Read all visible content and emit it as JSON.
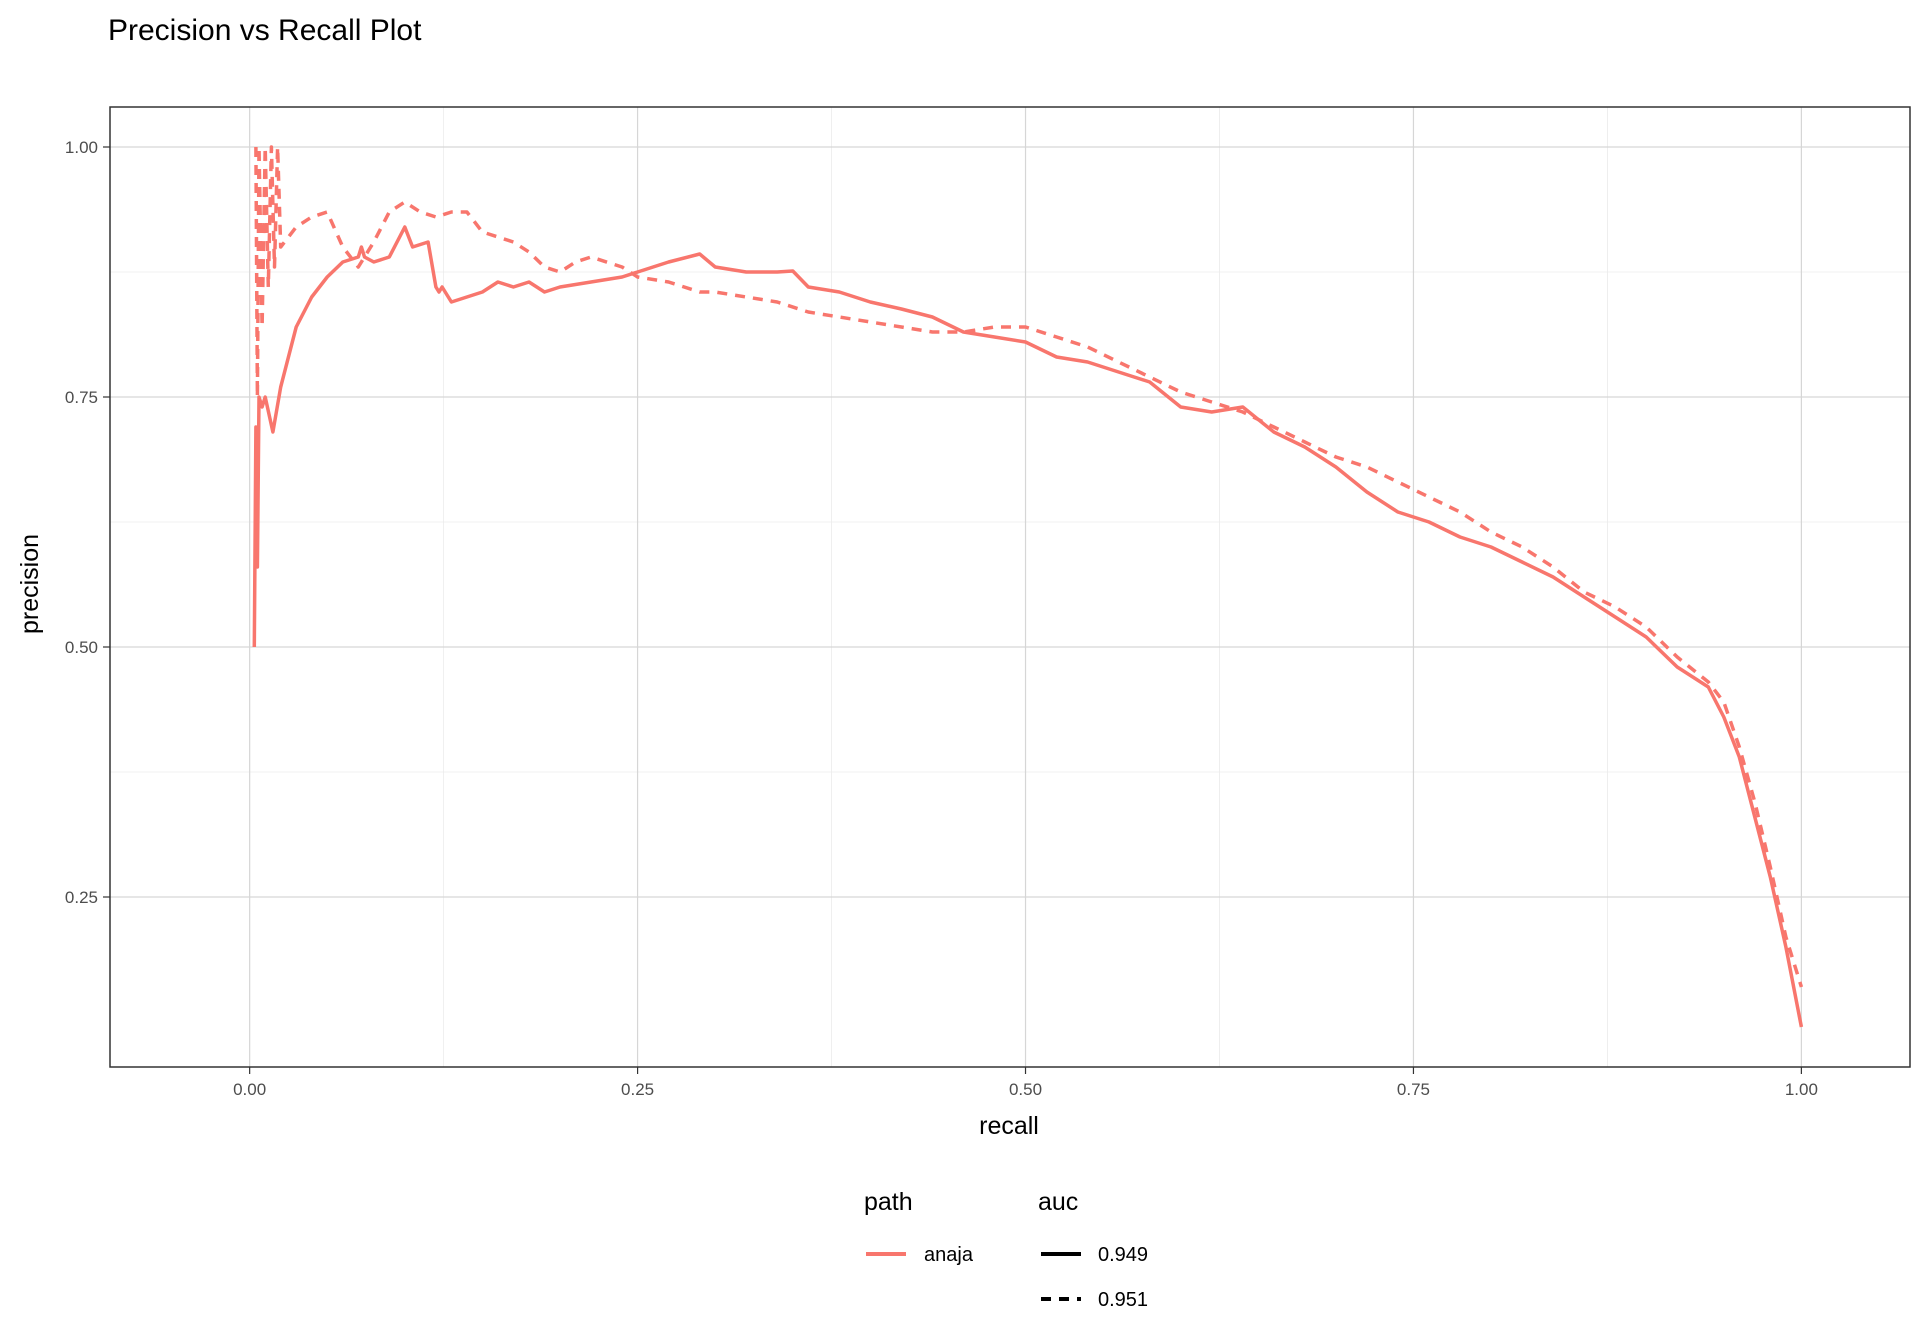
{
  "chart_data": {
    "type": "line",
    "title": "Precision vs Recall Plot",
    "xlabel": "recall",
    "ylabel": "precision",
    "xlim": [
      -0.09,
      1.07
    ],
    "ylim": [
      0.08,
      1.04
    ],
    "x_ticks": [
      0.0,
      0.25,
      0.5,
      0.75,
      1.0
    ],
    "x_tick_labels": [
      "0.00",
      "0.25",
      "0.50",
      "0.75",
      "1.00"
    ],
    "y_ticks": [
      0.25,
      0.5,
      0.75,
      1.0
    ],
    "y_tick_labels": [
      "0.25",
      "0.50",
      "0.75",
      "1.00"
    ],
    "grid": true,
    "legend_position": "bottom",
    "legend": {
      "color_title": "path",
      "color_entries": [
        {
          "label": "anaja",
          "color": "#f8766d"
        }
      ],
      "linetype_title": "auc",
      "linetype_entries": [
        {
          "label": "0.949",
          "linetype": "solid"
        },
        {
          "label": "0.951",
          "linetype": "dashed"
        }
      ]
    },
    "series": [
      {
        "path": "anaja",
        "auc": "0.949",
        "linetype": "solid",
        "color": "#f8766d",
        "points": [
          [
            0.003,
            0.5
          ],
          [
            0.004,
            0.72
          ],
          [
            0.005,
            0.58
          ],
          [
            0.006,
            0.75
          ],
          [
            0.008,
            0.74
          ],
          [
            0.01,
            0.75
          ],
          [
            0.015,
            0.715
          ],
          [
            0.02,
            0.76
          ],
          [
            0.03,
            0.82
          ],
          [
            0.04,
            0.85
          ],
          [
            0.05,
            0.87
          ],
          [
            0.06,
            0.885
          ],
          [
            0.07,
            0.89
          ],
          [
            0.072,
            0.9
          ],
          [
            0.074,
            0.89
          ],
          [
            0.08,
            0.885
          ],
          [
            0.09,
            0.89
          ],
          [
            0.1,
            0.92
          ],
          [
            0.105,
            0.9
          ],
          [
            0.115,
            0.905
          ],
          [
            0.12,
            0.86
          ],
          [
            0.122,
            0.855
          ],
          [
            0.124,
            0.86
          ],
          [
            0.13,
            0.845
          ],
          [
            0.15,
            0.855
          ],
          [
            0.16,
            0.865
          ],
          [
            0.17,
            0.86
          ],
          [
            0.18,
            0.865
          ],
          [
            0.19,
            0.855
          ],
          [
            0.2,
            0.86
          ],
          [
            0.22,
            0.865
          ],
          [
            0.24,
            0.87
          ],
          [
            0.25,
            0.875
          ],
          [
            0.27,
            0.885
          ],
          [
            0.29,
            0.893
          ],
          [
            0.3,
            0.88
          ],
          [
            0.32,
            0.875
          ],
          [
            0.34,
            0.875
          ],
          [
            0.35,
            0.876
          ],
          [
            0.36,
            0.86
          ],
          [
            0.38,
            0.855
          ],
          [
            0.4,
            0.845
          ],
          [
            0.42,
            0.838
          ],
          [
            0.44,
            0.83
          ],
          [
            0.46,
            0.815
          ],
          [
            0.48,
            0.81
          ],
          [
            0.5,
            0.805
          ],
          [
            0.52,
            0.79
          ],
          [
            0.54,
            0.785
          ],
          [
            0.56,
            0.775
          ],
          [
            0.58,
            0.765
          ],
          [
            0.6,
            0.74
          ],
          [
            0.62,
            0.735
          ],
          [
            0.64,
            0.74
          ],
          [
            0.66,
            0.715
          ],
          [
            0.68,
            0.7
          ],
          [
            0.7,
            0.68
          ],
          [
            0.72,
            0.655
          ],
          [
            0.74,
            0.635
          ],
          [
            0.76,
            0.625
          ],
          [
            0.78,
            0.61
          ],
          [
            0.8,
            0.6
          ],
          [
            0.82,
            0.585
          ],
          [
            0.84,
            0.57
          ],
          [
            0.86,
            0.55
          ],
          [
            0.88,
            0.53
          ],
          [
            0.9,
            0.51
          ],
          [
            0.92,
            0.48
          ],
          [
            0.94,
            0.46
          ],
          [
            0.95,
            0.43
          ],
          [
            0.96,
            0.39
          ],
          [
            0.97,
            0.33
          ],
          [
            0.98,
            0.27
          ],
          [
            0.99,
            0.2
          ],
          [
            1.0,
            0.12
          ]
        ]
      },
      {
        "path": "anaja",
        "auc": "0.951",
        "linetype": "dashed",
        "color": "#f8766d",
        "points": [
          [
            0.004,
            1.0
          ],
          [
            0.005,
            0.75
          ],
          [
            0.006,
            1.0
          ],
          [
            0.008,
            0.82
          ],
          [
            0.01,
            1.0
          ],
          [
            0.012,
            0.86
          ],
          [
            0.014,
            1.0
          ],
          [
            0.016,
            0.88
          ],
          [
            0.018,
            1.0
          ],
          [
            0.02,
            0.9
          ],
          [
            0.03,
            0.92
          ],
          [
            0.04,
            0.93
          ],
          [
            0.05,
            0.935
          ],
          [
            0.06,
            0.9
          ],
          [
            0.07,
            0.88
          ],
          [
            0.08,
            0.905
          ],
          [
            0.09,
            0.935
          ],
          [
            0.1,
            0.945
          ],
          [
            0.11,
            0.935
          ],
          [
            0.12,
            0.93
          ],
          [
            0.13,
            0.935
          ],
          [
            0.14,
            0.935
          ],
          [
            0.15,
            0.915
          ],
          [
            0.16,
            0.91
          ],
          [
            0.17,
            0.905
          ],
          [
            0.18,
            0.895
          ],
          [
            0.19,
            0.88
          ],
          [
            0.2,
            0.875
          ],
          [
            0.21,
            0.885
          ],
          [
            0.22,
            0.89
          ],
          [
            0.24,
            0.88
          ],
          [
            0.25,
            0.87
          ],
          [
            0.27,
            0.865
          ],
          [
            0.29,
            0.855
          ],
          [
            0.3,
            0.855
          ],
          [
            0.32,
            0.85
          ],
          [
            0.34,
            0.845
          ],
          [
            0.36,
            0.835
          ],
          [
            0.38,
            0.83
          ],
          [
            0.4,
            0.825
          ],
          [
            0.42,
            0.82
          ],
          [
            0.44,
            0.815
          ],
          [
            0.46,
            0.815
          ],
          [
            0.48,
            0.82
          ],
          [
            0.5,
            0.82
          ],
          [
            0.52,
            0.81
          ],
          [
            0.54,
            0.8
          ],
          [
            0.56,
            0.785
          ],
          [
            0.58,
            0.77
          ],
          [
            0.6,
            0.755
          ],
          [
            0.62,
            0.745
          ],
          [
            0.64,
            0.735
          ],
          [
            0.66,
            0.72
          ],
          [
            0.68,
            0.705
          ],
          [
            0.7,
            0.69
          ],
          [
            0.72,
            0.68
          ],
          [
            0.74,
            0.665
          ],
          [
            0.76,
            0.65
          ],
          [
            0.78,
            0.635
          ],
          [
            0.8,
            0.615
          ],
          [
            0.82,
            0.6
          ],
          [
            0.84,
            0.58
          ],
          [
            0.86,
            0.555
          ],
          [
            0.88,
            0.54
          ],
          [
            0.9,
            0.52
          ],
          [
            0.92,
            0.49
          ],
          [
            0.94,
            0.465
          ],
          [
            0.95,
            0.445
          ],
          [
            0.96,
            0.4
          ],
          [
            0.97,
            0.345
          ],
          [
            0.98,
            0.28
          ],
          [
            0.99,
            0.21
          ],
          [
            1.0,
            0.16
          ]
        ]
      }
    ]
  }
}
